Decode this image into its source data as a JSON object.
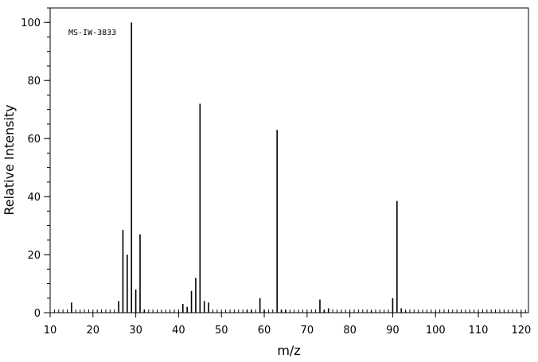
{
  "chart_data": {
    "type": "bar",
    "annotation": "MS-IW-3833",
    "xlabel": "m/z",
    "ylabel": "Relative Intensity",
    "x": [
      15,
      26,
      27,
      28,
      29,
      30,
      31,
      32,
      41,
      42,
      43,
      44,
      45,
      46,
      47,
      56,
      57,
      59,
      60,
      63,
      64,
      65,
      73,
      74,
      75,
      85,
      90,
      91,
      92,
      93
    ],
    "values": [
      3.5,
      4,
      28.5,
      20,
      100,
      8,
      27,
      1,
      3,
      2,
      7.5,
      12,
      72,
      4,
      3.5,
      1,
      1,
      5,
      1,
      63,
      1,
      1,
      4.5,
      1,
      1.5,
      0.5,
      5,
      38.5,
      1.5,
      0.5
    ],
    "color": "#000000",
    "xlim": [
      10,
      121.7
    ],
    "ylim": [
      0,
      105
    ],
    "xticks": [
      10,
      20,
      30,
      40,
      50,
      60,
      70,
      80,
      90,
      100,
      110,
      120
    ],
    "yticks": [
      0,
      20,
      40,
      60,
      80,
      100
    ],
    "x_minor_step": 1,
    "y_minor_step": 5
  }
}
